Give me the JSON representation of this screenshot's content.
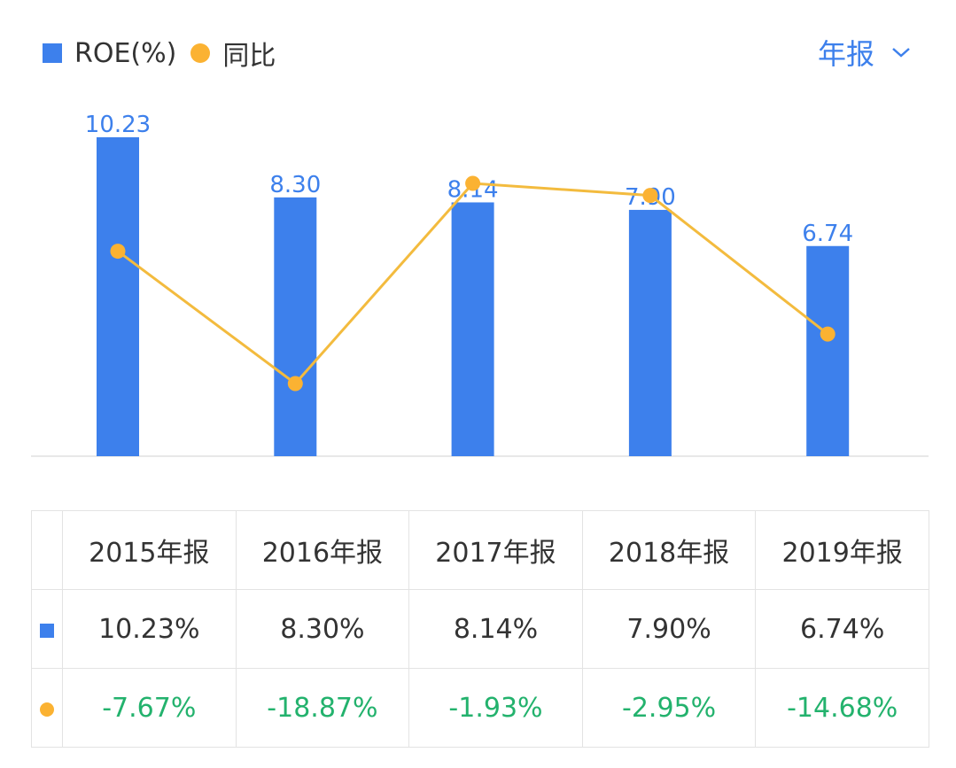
{
  "legend": {
    "roe": "ROE(%)",
    "yoy": "同比"
  },
  "period_selector": {
    "label": "年报"
  },
  "chart_data": {
    "type": "bar+line",
    "categories": [
      "2015年报",
      "2016年报",
      "2017年报",
      "2018年报",
      "2019年报"
    ],
    "series": [
      {
        "name": "ROE(%)",
        "type": "bar",
        "values": [
          10.23,
          8.3,
          8.14,
          7.9,
          6.74
        ],
        "labels": [
          "10.23",
          "8.30",
          "8.14",
          "7.90",
          "6.74"
        ],
        "color": "#3d80ec"
      },
      {
        "name": "同比",
        "type": "line",
        "values": [
          -7.67,
          -18.87,
          -1.93,
          -2.95,
          -14.68
        ],
        "color": "#fbb232"
      }
    ],
    "grid": false,
    "legend": "top-left"
  },
  "table": {
    "headers": [
      "2015年报",
      "2016年报",
      "2017年报",
      "2018年报",
      "2019年报"
    ],
    "roe_row": [
      "10.23%",
      "8.30%",
      "8.14%",
      "7.90%",
      "6.74%"
    ],
    "yoy_row": [
      "-7.67%",
      "-18.87%",
      "-1.93%",
      "-2.95%",
      "-14.68%"
    ],
    "colors": {
      "negative": "#23b26d"
    }
  }
}
